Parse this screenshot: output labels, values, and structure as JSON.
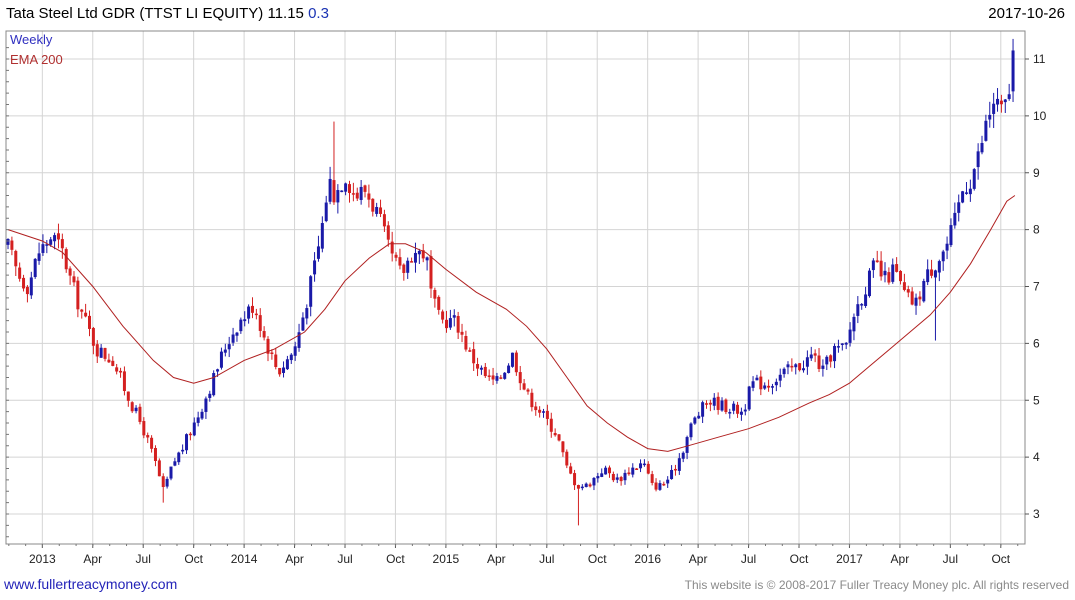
{
  "header": {
    "title": "Tata Steel Ltd GDR (TTST LI EQUITY) 11.15",
    "change": "0.3",
    "date": "2017-10-26"
  },
  "legend": {
    "series1": "Weekly",
    "series2": "EMA 200"
  },
  "footer": {
    "website": "www.fullertreacymoney.com",
    "copyright": "This website is © 2008-2017 Fuller Treacy Money plc. All rights reserved"
  },
  "colors": {
    "up": "#1a1aa8",
    "down": "#d42020",
    "ema": "#b02020",
    "grid": "#d4d4d4"
  },
  "chart_data": {
    "type": "candlestick",
    "title": "Tata Steel Ltd GDR (TTST LI EQUITY)",
    "frequency": "Weekly",
    "x_range": [
      "2012-10",
      "2017-10"
    ],
    "ylim": [
      2.5,
      11.3
    ],
    "y_ticks": [
      3,
      4,
      5,
      6,
      7,
      8,
      9,
      10,
      11
    ],
    "x_ticks": [
      {
        "label": "2013",
        "t": 2013.0
      },
      {
        "label": "Apr",
        "t": 2013.25
      },
      {
        "label": "Jul",
        "t": 2013.5
      },
      {
        "label": "Oct",
        "t": 2013.75
      },
      {
        "label": "2014",
        "t": 2014.0
      },
      {
        "label": "Apr",
        "t": 2014.25
      },
      {
        "label": "Jul",
        "t": 2014.5
      },
      {
        "label": "Oct",
        "t": 2014.75
      },
      {
        "label": "2015",
        "t": 2015.0
      },
      {
        "label": "Apr",
        "t": 2015.25
      },
      {
        "label": "Jul",
        "t": 2015.5
      },
      {
        "label": "Oct",
        "t": 2015.75
      },
      {
        "label": "2016",
        "t": 2016.0
      },
      {
        "label": "Apr",
        "t": 2016.25
      },
      {
        "label": "Jul",
        "t": 2016.5
      },
      {
        "label": "Oct",
        "t": 2016.75
      },
      {
        "label": "2017",
        "t": 2017.0
      },
      {
        "label": "Apr",
        "t": 2017.25
      },
      {
        "label": "Jul",
        "t": 2017.5
      },
      {
        "label": "Oct",
        "t": 2017.75
      }
    ],
    "price_path": [
      [
        2012.83,
        7.7
      ],
      [
        2012.88,
        7.2
      ],
      [
        2012.93,
        7.0
      ],
      [
        2012.98,
        7.6
      ],
      [
        2013.05,
        7.9
      ],
      [
        2013.1,
        7.6
      ],
      [
        2013.15,
        7.0
      ],
      [
        2013.2,
        6.5
      ],
      [
        2013.27,
        5.9
      ],
      [
        2013.35,
        5.7
      ],
      [
        2013.42,
        5.1
      ],
      [
        2013.5,
        4.5
      ],
      [
        2013.56,
        3.9
      ],
      [
        2013.6,
        3.4
      ],
      [
        2013.65,
        3.9
      ],
      [
        2013.7,
        4.2
      ],
      [
        2013.78,
        4.8
      ],
      [
        2013.85,
        5.4
      ],
      [
        2013.9,
        5.9
      ],
      [
        2013.96,
        6.3
      ],
      [
        2014.05,
        6.7
      ],
      [
        2014.1,
        6.1
      ],
      [
        2014.17,
        5.5
      ],
      [
        2014.25,
        5.9
      ],
      [
        2014.3,
        6.6
      ],
      [
        2014.34,
        7.2
      ],
      [
        2014.38,
        7.9
      ],
      [
        2014.42,
        8.9
      ],
      [
        2014.45,
        8.6
      ],
      [
        2014.5,
        9.0
      ],
      [
        2014.55,
        8.6
      ],
      [
        2014.6,
        8.7
      ],
      [
        2014.66,
        8.3
      ],
      [
        2014.72,
        7.6
      ],
      [
        2014.78,
        7.2
      ],
      [
        2014.83,
        7.6
      ],
      [
        2014.9,
        7.6
      ],
      [
        2014.93,
        6.8
      ],
      [
        2014.97,
        6.4
      ],
      [
        2015.05,
        6.4
      ],
      [
        2015.12,
        5.8
      ],
      [
        2015.2,
        5.4
      ],
      [
        2015.25,
        5.3
      ],
      [
        2015.33,
        5.8
      ],
      [
        2015.4,
        5.1
      ],
      [
        2015.47,
        4.8
      ],
      [
        2015.55,
        4.4
      ],
      [
        2015.6,
        3.8
      ],
      [
        2015.65,
        3.5
      ],
      [
        2015.7,
        3.5
      ],
      [
        2015.78,
        3.8
      ],
      [
        2015.85,
        3.6
      ],
      [
        2015.92,
        3.8
      ],
      [
        2015.98,
        3.9
      ],
      [
        2016.02,
        3.5
      ],
      [
        2016.07,
        3.5
      ],
      [
        2016.12,
        3.7
      ],
      [
        2016.17,
        4.1
      ],
      [
        2016.22,
        4.6
      ],
      [
        2016.3,
        5.0
      ],
      [
        2016.38,
        4.9
      ],
      [
        2016.47,
        4.8
      ],
      [
        2016.52,
        5.3
      ],
      [
        2016.6,
        5.3
      ],
      [
        2016.68,
        5.5
      ],
      [
        2016.75,
        5.6
      ],
      [
        2016.82,
        5.8
      ],
      [
        2016.87,
        5.5
      ],
      [
        2016.92,
        5.9
      ],
      [
        2016.98,
        5.9
      ],
      [
        2017.02,
        6.5
      ],
      [
        2017.08,
        7.0
      ],
      [
        2017.13,
        7.4
      ],
      [
        2017.17,
        7.1
      ],
      [
        2017.22,
        7.3
      ],
      [
        2017.28,
        6.8
      ],
      [
        2017.33,
        6.7
      ],
      [
        2017.37,
        7.1
      ],
      [
        2017.42,
        7.4
      ],
      [
        2017.48,
        7.7
      ],
      [
        2017.52,
        8.1
      ],
      [
        2017.56,
        8.7
      ],
      [
        2017.6,
        8.9
      ],
      [
        2017.64,
        9.3
      ],
      [
        2017.68,
        9.9
      ],
      [
        2017.72,
        10.3
      ],
      [
        2017.76,
        10.0
      ],
      [
        2017.8,
        10.6
      ],
      [
        2017.82,
        11.15
      ]
    ],
    "ema200": [
      [
        2012.83,
        8.0
      ],
      [
        2013.0,
        7.8
      ],
      [
        2013.1,
        7.6
      ],
      [
        2013.25,
        7.0
      ],
      [
        2013.4,
        6.3
      ],
      [
        2013.55,
        5.7
      ],
      [
        2013.65,
        5.4
      ],
      [
        2013.75,
        5.3
      ],
      [
        2013.85,
        5.4
      ],
      [
        2014.0,
        5.7
      ],
      [
        2014.15,
        5.9
      ],
      [
        2014.3,
        6.2
      ],
      [
        2014.4,
        6.6
      ],
      [
        2014.5,
        7.1
      ],
      [
        2014.62,
        7.5
      ],
      [
        2014.72,
        7.75
      ],
      [
        2014.8,
        7.75
      ],
      [
        2014.9,
        7.6
      ],
      [
        2015.0,
        7.3
      ],
      [
        2015.15,
        6.9
      ],
      [
        2015.3,
        6.6
      ],
      [
        2015.4,
        6.3
      ],
      [
        2015.5,
        5.9
      ],
      [
        2015.6,
        5.4
      ],
      [
        2015.7,
        4.9
      ],
      [
        2015.8,
        4.6
      ],
      [
        2015.9,
        4.35
      ],
      [
        2016.0,
        4.15
      ],
      [
        2016.1,
        4.1
      ],
      [
        2016.2,
        4.2
      ],
      [
        2016.35,
        4.35
      ],
      [
        2016.5,
        4.5
      ],
      [
        2016.65,
        4.7
      ],
      [
        2016.8,
        4.95
      ],
      [
        2016.9,
        5.1
      ],
      [
        2017.0,
        5.3
      ],
      [
        2017.1,
        5.6
      ],
      [
        2017.2,
        5.9
      ],
      [
        2017.3,
        6.2
      ],
      [
        2017.4,
        6.5
      ],
      [
        2017.5,
        6.9
      ],
      [
        2017.6,
        7.4
      ],
      [
        2017.7,
        8.0
      ],
      [
        2017.78,
        8.5
      ],
      [
        2017.82,
        8.6
      ]
    ],
    "annotations": [
      {
        "t": 2013.6,
        "low": 3.2
      },
      {
        "t": 2014.45,
        "high": 9.9
      },
      {
        "t": 2015.65,
        "low": 2.8
      },
      {
        "t": 2017.42,
        "low": 6.05
      },
      {
        "t": 2017.82,
        "high": 11.15
      }
    ]
  }
}
